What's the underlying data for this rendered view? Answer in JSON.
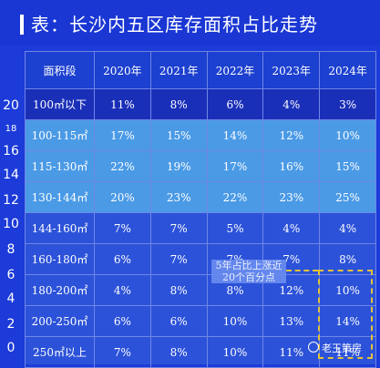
{
  "title": "表：长沙内五区库存面积占比走势",
  "y_axis_ticks": [
    "20",
    "18",
    "16",
    "14",
    "12",
    "10",
    "8",
    "6",
    "4",
    "2",
    "0"
  ],
  "chart_data": {
    "type": "table",
    "title": "表：长沙内五区库存面积占比走势",
    "columns": [
      "面积段",
      "2020年",
      "2021年",
      "2022年",
      "2023年",
      "2024年"
    ],
    "rows": [
      {
        "label": "100㎡以下",
        "values": [
          "11%",
          "8%",
          "6%",
          "4%",
          "3%"
        ],
        "highlight": "dark"
      },
      {
        "label": "100-115㎡",
        "values": [
          "17%",
          "15%",
          "14%",
          "12%",
          "10%"
        ],
        "highlight": "light"
      },
      {
        "label": "115-130㎡",
        "values": [
          "22%",
          "19%",
          "17%",
          "16%",
          "15%"
        ],
        "highlight": "light"
      },
      {
        "label": "130-144㎡",
        "values": [
          "20%",
          "23%",
          "22%",
          "23%",
          "25%"
        ],
        "highlight": "light"
      },
      {
        "label": "144-160㎡",
        "values": [
          "7%",
          "7%",
          "5%",
          "4%",
          "4%"
        ],
        "highlight": "none"
      },
      {
        "label": "160-180㎡",
        "values": [
          "6%",
          "7%",
          "7%",
          "7%",
          "8%"
        ],
        "highlight": "none"
      },
      {
        "label": "180-200㎡",
        "values": [
          "4%",
          "8%",
          "8%",
          "12%",
          "10%"
        ],
        "highlight": "none"
      },
      {
        "label": "200-250㎡",
        "values": [
          "6%",
          "6%",
          "10%",
          "13%",
          "14%"
        ],
        "highlight": "none"
      },
      {
        "label": "250㎡以上",
        "values": [
          "7%",
          "8%",
          "10%",
          "11%",
          "11%"
        ],
        "highlight": "none"
      }
    ]
  },
  "annotation": "5年占比上涨近20个百分点",
  "watermark": "老王策房",
  "colors": {
    "background": "#1c3bd8",
    "highlight_light": "#4a9ae6",
    "highlight_dark": "#1a2fb8",
    "dashed_box": "#e3c23a"
  }
}
